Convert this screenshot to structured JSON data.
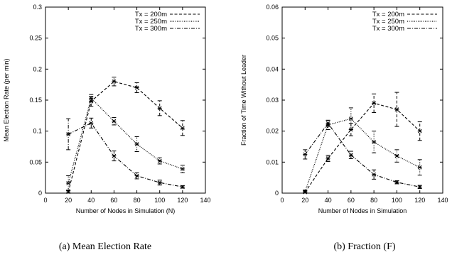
{
  "chart_data": [
    {
      "type": "line",
      "caption": "(a) Mean Election Rate",
      "xlabel": "Number of Nodes in Simulation (N)",
      "ylabel": "Mean Election Rate (per min)",
      "xlim": [
        0,
        140
      ],
      "ylim": [
        0,
        0.3
      ],
      "xticks": [
        0,
        20,
        40,
        60,
        80,
        100,
        120,
        140
      ],
      "yticks": [
        0,
        0.05,
        0.1,
        0.15,
        0.2,
        0.25,
        0.3
      ],
      "ytick_labels": [
        "0",
        "0.05",
        "0.1",
        "0.15",
        "0.2",
        "0.25",
        "0.3"
      ],
      "grid": false,
      "legend_position": "top-right",
      "x": [
        20,
        40,
        60,
        80,
        100,
        120
      ],
      "series": [
        {
          "name": "Tx = 200m",
          "style": "dashed",
          "values": [
            0.002,
            0.148,
            0.18,
            0.17,
            0.137,
            0.105
          ],
          "errors": [
            0.003,
            0.008,
            0.007,
            0.008,
            0.012,
            0.012
          ]
        },
        {
          "name": "Tx = 250m",
          "style": "dotted",
          "values": [
            0.016,
            0.153,
            0.116,
            0.079,
            0.052,
            0.039
          ],
          "errors": [
            0.012,
            0.006,
            0.006,
            0.012,
            0.005,
            0.006
          ]
        },
        {
          "name": "Tx = 300m",
          "style": "dashdot",
          "values": [
            0.095,
            0.113,
            0.06,
            0.028,
            0.017,
            0.01
          ],
          "errors": [
            0.025,
            0.008,
            0.008,
            0.005,
            0.004,
            0.002
          ]
        }
      ]
    },
    {
      "type": "line",
      "caption": "(b) Fraction (F)",
      "xlabel": "Number of Nodes in Simulation",
      "ylabel": "Fraction of Time Without Leader",
      "xlim": [
        0,
        140
      ],
      "ylim": [
        0,
        0.06
      ],
      "xticks": [
        0,
        20,
        40,
        60,
        80,
        100,
        120,
        140
      ],
      "yticks": [
        0,
        0.01,
        0.02,
        0.03,
        0.04,
        0.05,
        0.06
      ],
      "ytick_labels": [
        "0",
        "0.01",
        "0.02",
        "0.03",
        "0.04",
        "0.05",
        "0.06"
      ],
      "grid": false,
      "legend_position": "top-right",
      "x": [
        20,
        40,
        60,
        80,
        100,
        120
      ],
      "series": [
        {
          "name": "Tx = 200m",
          "style": "dashed",
          "values": [
            0.0003,
            0.0112,
            0.0205,
            0.029,
            0.027,
            0.02
          ],
          "errors": [
            0.0005,
            0.001,
            0.002,
            0.003,
            0.0055,
            0.003
          ]
        },
        {
          "name": "Tx = 250m",
          "style": "dotted",
          "values": [
            0.0005,
            0.022,
            0.024,
            0.0165,
            0.012,
            0.0083
          ],
          "errors": [
            0.0005,
            0.0015,
            0.0035,
            0.0035,
            0.002,
            0.0025
          ]
        },
        {
          "name": "Tx = 300m",
          "style": "dashdot",
          "values": [
            0.0125,
            0.0225,
            0.0123,
            0.006,
            0.0035,
            0.002
          ],
          "errors": [
            0.0015,
            0.001,
            0.0012,
            0.0015,
            0.0005,
            0.0005
          ]
        }
      ]
    }
  ]
}
